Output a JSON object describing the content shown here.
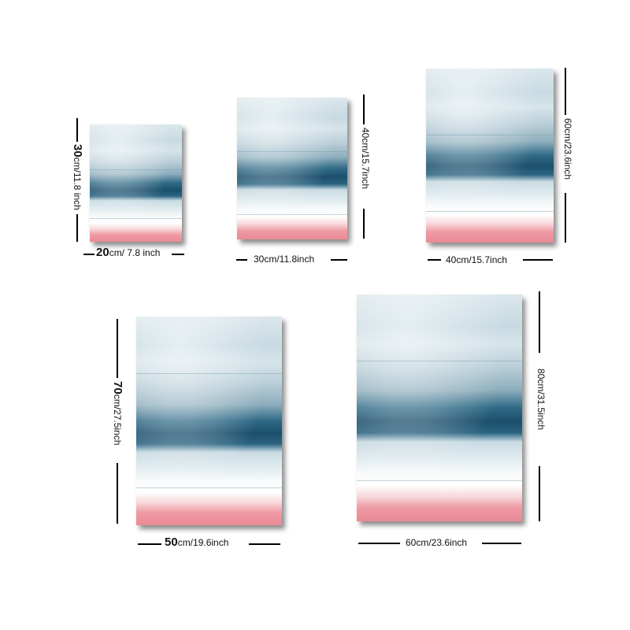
{
  "products": [
    {
      "width_label_main": "20",
      "width_label_rest": "cm/ 7.8 inch",
      "height_label_main": "30",
      "height_label_rest": "cm/11.8 inch"
    },
    {
      "width_label_main": "",
      "width_label_rest": "30cm/11.8inch",
      "height_label_main": "",
      "height_label_rest": "40cm/15.7inch"
    },
    {
      "width_label_main": "",
      "width_label_rest": "40cm/15.7inch",
      "height_label_main": "",
      "height_label_rest": "60cm/23.6inch"
    },
    {
      "width_label_main": "50",
      "width_label_rest": "cm/19.6inch",
      "height_label_main": "70",
      "height_label_rest": "cm/27.5inch"
    },
    {
      "width_label_main": "",
      "width_label_rest": "60cm/23.6inch",
      "height_label_main": "",
      "height_label_rest": "80cm/31.5inch"
    }
  ],
  "colors": {
    "background": "#ffffff",
    "sky": "#c7dae2",
    "dark_band": "#1c4f6c",
    "blush": "#e98a95",
    "lines": "#000000"
  }
}
